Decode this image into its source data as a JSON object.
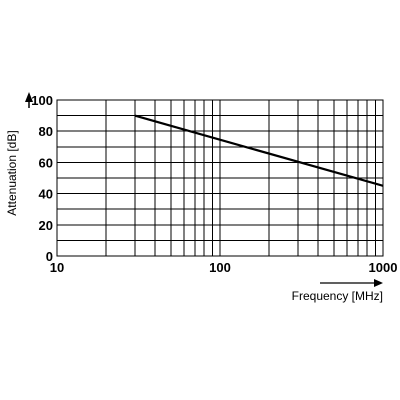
{
  "chart_data": {
    "type": "line",
    "title": "",
    "xlabel": "Frequency [MHz]",
    "ylabel": "Attenuation [dB]",
    "x_scale": "log",
    "xlim": [
      10,
      1000
    ],
    "ylim": [
      0,
      100
    ],
    "x_ticks": [
      10,
      100,
      1000
    ],
    "x_tick_labels": [
      "10",
      "100",
      "1000"
    ],
    "y_ticks": [
      0,
      20,
      40,
      60,
      80,
      100
    ],
    "y_tick_labels": [
      "0",
      "20",
      "40",
      "60",
      "80",
      "100"
    ],
    "y_minor_step": 10,
    "grid": true,
    "legend": "none",
    "series": [
      {
        "x": [
          30,
          1000
        ],
        "y": [
          90,
          45
        ]
      }
    ]
  }
}
